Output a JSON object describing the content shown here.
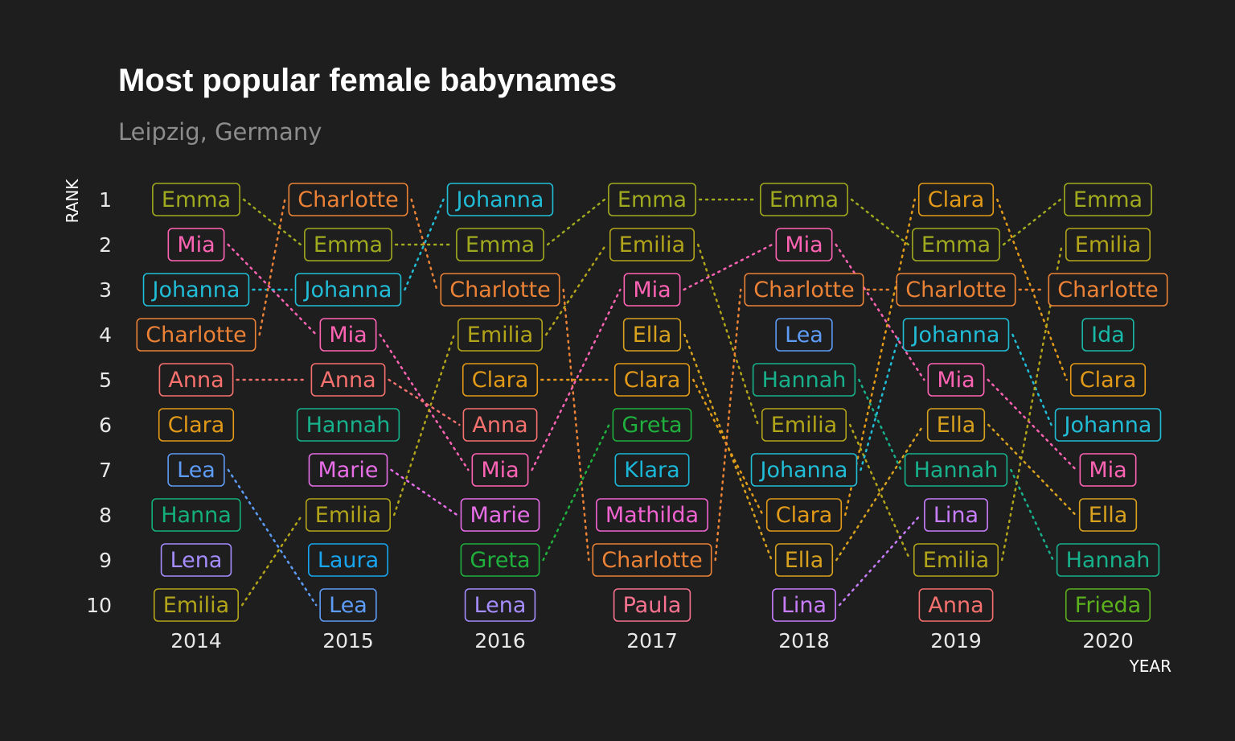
{
  "title": "Most popular female babynames",
  "subtitle": "Leipzig, Germany",
  "chart_data": {
    "type": "bump",
    "title": "Most popular female babynames",
    "subtitle": "Leipzig, Germany",
    "xlabel": "YEAR",
    "ylabel": "RANK",
    "years": [
      "2014",
      "2015",
      "2016",
      "2017",
      "2018",
      "2019",
      "2020"
    ],
    "ranks": [
      "1",
      "2",
      "3",
      "4",
      "5",
      "6",
      "7",
      "8",
      "9",
      "10"
    ],
    "rankings": [
      {
        "year": "2014",
        "names": [
          "Emma",
          "Mia",
          "Johanna",
          "Charlotte",
          "Anna",
          "Clara",
          "Lea",
          "Hanna",
          "Lena",
          "Emilia"
        ]
      },
      {
        "year": "2015",
        "names": [
          "Charlotte",
          "Emma",
          "Johanna",
          "Mia",
          "Anna",
          "Hannah",
          "Marie",
          "Emilia",
          "Laura",
          "Lea"
        ]
      },
      {
        "year": "2016",
        "names": [
          "Johanna",
          "Emma",
          "Charlotte",
          "Emilia",
          "Clara",
          "Anna",
          "Mia",
          "Marie",
          "Greta",
          "Lena"
        ]
      },
      {
        "year": "2017",
        "names": [
          "Emma",
          "Emilia",
          "Mia",
          "Ella",
          "Clara",
          "Greta",
          "Klara",
          "Mathilda",
          "Charlotte",
          "Paula"
        ]
      },
      {
        "year": "2018",
        "names": [
          "Emma",
          "Mia",
          "Charlotte",
          "Lea",
          "Hannah",
          "Emilia",
          "Johanna",
          "Clara",
          "Ella",
          "Lina"
        ]
      },
      {
        "year": "2019",
        "names": [
          "Clara",
          "Emma",
          "Charlotte",
          "Johanna",
          "Mia",
          "Ella",
          "Hannah",
          "Lina",
          "Emilia",
          "Anna"
        ]
      },
      {
        "year": "2020",
        "names": [
          "Emma",
          "Emilia",
          "Charlotte",
          "Ida",
          "Clara",
          "Johanna",
          "Mia",
          "Ella",
          "Hannah",
          "Frieda"
        ]
      }
    ],
    "colors": {
      "Emma": "#a0aa1e",
      "Emilia": "#b3a51a",
      "Charlotte": "#ec8236",
      "Clara": "#e29a18",
      "Klara": "#1ab7d8",
      "Ella": "#d9a21e",
      "Johanna": "#21bdd7",
      "Mia": "#ff63b4",
      "Anna": "#f7716e",
      "Hannah": "#17b18c",
      "Hanna": "#14b07b",
      "Lea": "#5d9cf7",
      "Lena": "#a58cff",
      "Laura": "#18a6f0",
      "Marie": "#e86ee8",
      "Greta": "#1fb03d",
      "Mathilda": "#f263d2",
      "Paula": "#f7738f",
      "Lina": "#c97dff",
      "Ida": "#18baa9",
      "Frieda": "#5bb21c"
    }
  }
}
